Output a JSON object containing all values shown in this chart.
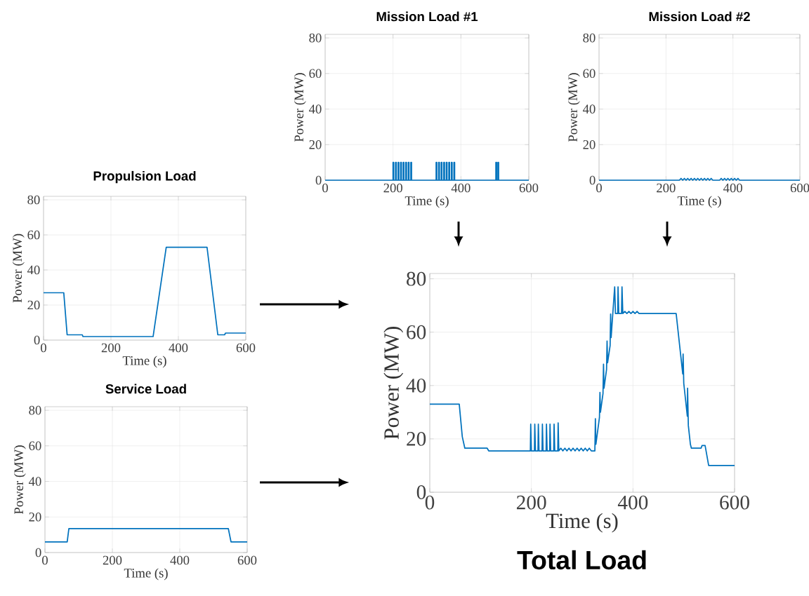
{
  "chart_data": [
    {
      "type": "line",
      "title": "Mission Load #1",
      "xlabel": "Time (s)",
      "ylabel": "Power (MW)",
      "xlim": [
        0,
        600
      ],
      "ylim": [
        0,
        82
      ],
      "xticks": [
        0,
        200,
        400,
        600
      ],
      "yticks": [
        0,
        20,
        40,
        60,
        80
      ],
      "grid": true,
      "series": [
        {
          "color": "#0072bd",
          "x": [
            0,
            200,
            200,
            202,
            202,
            207.5,
            207.5,
            209.5,
            209.5,
            215,
            215,
            217,
            217,
            222.5,
            222.5,
            224.5,
            224.5,
            230,
            230,
            232,
            232,
            237.5,
            237.5,
            239.5,
            239.5,
            245,
            245,
            247,
            247,
            252.5,
            252.5,
            254.5,
            254.5,
            327,
            327,
            329,
            329,
            334.5,
            334.5,
            336.5,
            336.5,
            342,
            342,
            344,
            344,
            349.5,
            349.5,
            351.5,
            351.5,
            357,
            357,
            359,
            359,
            364.5,
            364.5,
            366.5,
            366.5,
            372,
            372,
            374,
            374,
            379.5,
            379.5,
            381.5,
            381.5,
            503,
            503,
            505,
            505,
            509,
            509,
            511,
            511,
            600
          ],
          "values": [
            0,
            0,
            10,
            10,
            0,
            0,
            10,
            10,
            0,
            0,
            10,
            10,
            0,
            0,
            10,
            10,
            0,
            0,
            10,
            10,
            0,
            0,
            10,
            10,
            0,
            0,
            10,
            10,
            0,
            0,
            10,
            10,
            0,
            0,
            10,
            10,
            0,
            0,
            10,
            10,
            0,
            0,
            10,
            10,
            0,
            0,
            10,
            10,
            0,
            0,
            10,
            10,
            0,
            0,
            10,
            10,
            0,
            0,
            10,
            10,
            0,
            0,
            10,
            10,
            0,
            0,
            10,
            10,
            0,
            0,
            10,
            10,
            0,
            0
          ]
        }
      ]
    },
    {
      "type": "line",
      "title": "Mission Load #2",
      "xlabel": "Time (s)",
      "ylabel": "Power (MW)",
      "xlim": [
        0,
        600
      ],
      "ylim": [
        0,
        82
      ],
      "xticks": [
        0,
        200,
        400,
        600
      ],
      "yticks": [
        0,
        20,
        40,
        60,
        80
      ],
      "grid": true,
      "series": [
        {
          "color": "#0072bd",
          "x": [
            0,
            240,
            245,
            250,
            255,
            260,
            265,
            270,
            275,
            280,
            285,
            290,
            295,
            300,
            305,
            310,
            315,
            320,
            325,
            330,
            335,
            340,
            360,
            365,
            370,
            375,
            380,
            385,
            390,
            395,
            400,
            405,
            410,
            415,
            420,
            600
          ],
          "values": [
            0,
            0,
            1,
            0,
            1,
            0,
            1,
            0,
            1,
            0,
            1,
            0,
            1,
            0,
            1,
            0,
            1,
            0,
            1,
            0,
            1,
            0,
            0,
            1,
            0,
            1,
            0,
            1,
            0,
            1,
            0,
            1,
            0,
            1,
            0,
            0
          ]
        }
      ]
    },
    {
      "type": "line",
      "title": "Propulsion Load",
      "xlabel": "Time (s)",
      "ylabel": "Power (MW)",
      "xlim": [
        0,
        600
      ],
      "ylim": [
        0,
        82
      ],
      "xticks": [
        0,
        200,
        400,
        600
      ],
      "yticks": [
        0,
        20,
        40,
        60,
        80
      ],
      "grid": true,
      "series": [
        {
          "color": "#0072bd",
          "x": [
            0,
            60,
            70,
            115,
            117,
            325,
            364,
            485,
            517,
            537,
            540,
            600
          ],
          "values": [
            27,
            27,
            3,
            3,
            2,
            2,
            53,
            53,
            3,
            3,
            4,
            4
          ]
        }
      ]
    },
    {
      "type": "line",
      "title": "Service Load",
      "xlabel": "Time (s)",
      "ylabel": "Power (MW)",
      "xlim": [
        0,
        600
      ],
      "ylim": [
        0,
        82
      ],
      "xticks": [
        0,
        200,
        400,
        600
      ],
      "yticks": [
        0,
        20,
        40,
        60,
        80
      ],
      "grid": true,
      "series": [
        {
          "color": "#0072bd",
          "x": [
            0,
            66,
            71,
            544,
            552,
            600
          ],
          "values": [
            6,
            6,
            13.5,
            13.5,
            6,
            6
          ]
        }
      ]
    },
    {
      "type": "line",
      "title": "Total Load",
      "xlabel": "Time (s)",
      "ylabel": "Power (MW)",
      "xlim": [
        0,
        600
      ],
      "ylim": [
        0,
        82
      ],
      "xticks": [
        0,
        200,
        400,
        600
      ],
      "yticks": [
        0,
        20,
        40,
        60,
        80
      ],
      "grid": true,
      "series": [
        {
          "color": "#0072bd",
          "x": [
            0,
            58,
            64,
            69,
            113,
            116,
            198,
            198.7,
            200,
            206,
            206.7,
            208,
            213,
            213.7,
            215,
            221,
            221.7,
            223,
            229,
            229.7,
            231,
            236,
            236.7,
            238,
            244,
            244.7,
            246,
            252,
            252.7,
            254,
            258,
            262,
            266,
            270,
            274,
            278,
            282,
            286,
            290,
            294,
            298,
            302,
            306,
            310,
            314,
            318,
            322,
            325,
            326,
            327,
            334,
            335,
            336,
            341,
            342,
            343,
            348,
            349,
            350,
            355,
            356,
            357,
            364,
            365.5,
            370,
            370.6,
            372,
            377.5,
            378.4,
            380,
            384,
            388,
            392,
            396,
            400,
            404,
            408,
            412,
            415,
            485,
            498,
            498.7,
            500,
            507,
            507.5,
            509,
            513,
            515,
            534,
            536,
            542,
            549,
            600
          ],
          "values": [
            33,
            33,
            20.8,
            16.5,
            16.5,
            15.5,
            15.5,
            25.5,
            15.5,
            15.5,
            25.5,
            15.5,
            15.5,
            25.5,
            15.5,
            15.5,
            25.5,
            15.5,
            15.5,
            25.5,
            15.5,
            15.5,
            25.5,
            15.5,
            15.5,
            25.5,
            15.5,
            15.5,
            26,
            15.5,
            16.5,
            15.5,
            16.5,
            15.5,
            16.5,
            15.5,
            16.5,
            15.5,
            16.5,
            15.5,
            16.5,
            15.5,
            16.5,
            15.5,
            16.5,
            15.5,
            15.5,
            15.5,
            27.6,
            18,
            28,
            37.4,
            30,
            37,
            48,
            39,
            46,
            56.7,
            48.5,
            55,
            66.8,
            58,
            77,
            67,
            67,
            77,
            67,
            67,
            77,
            67,
            67.8,
            67,
            67.8,
            67,
            67.8,
            67,
            67.8,
            67,
            67,
            67,
            44.3,
            51.8,
            40.8,
            28.5,
            39,
            25,
            18,
            16.5,
            16.5,
            17.5,
            17.5,
            10,
            10
          ]
        }
      ]
    }
  ]
}
